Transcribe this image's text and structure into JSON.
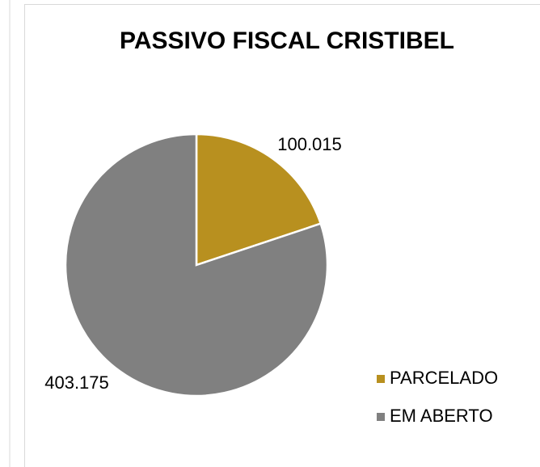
{
  "chart_data": {
    "type": "pie",
    "title": "PASSIVO FISCAL CRISTIBEL",
    "categories": [
      "PARCELADO",
      "EM ABERTO"
    ],
    "values": [
      100015,
      403175
    ],
    "value_labels": [
      "100.015",
      "403.175"
    ],
    "colors": [
      "#b8901f",
      "#808080"
    ],
    "legend": "right"
  }
}
